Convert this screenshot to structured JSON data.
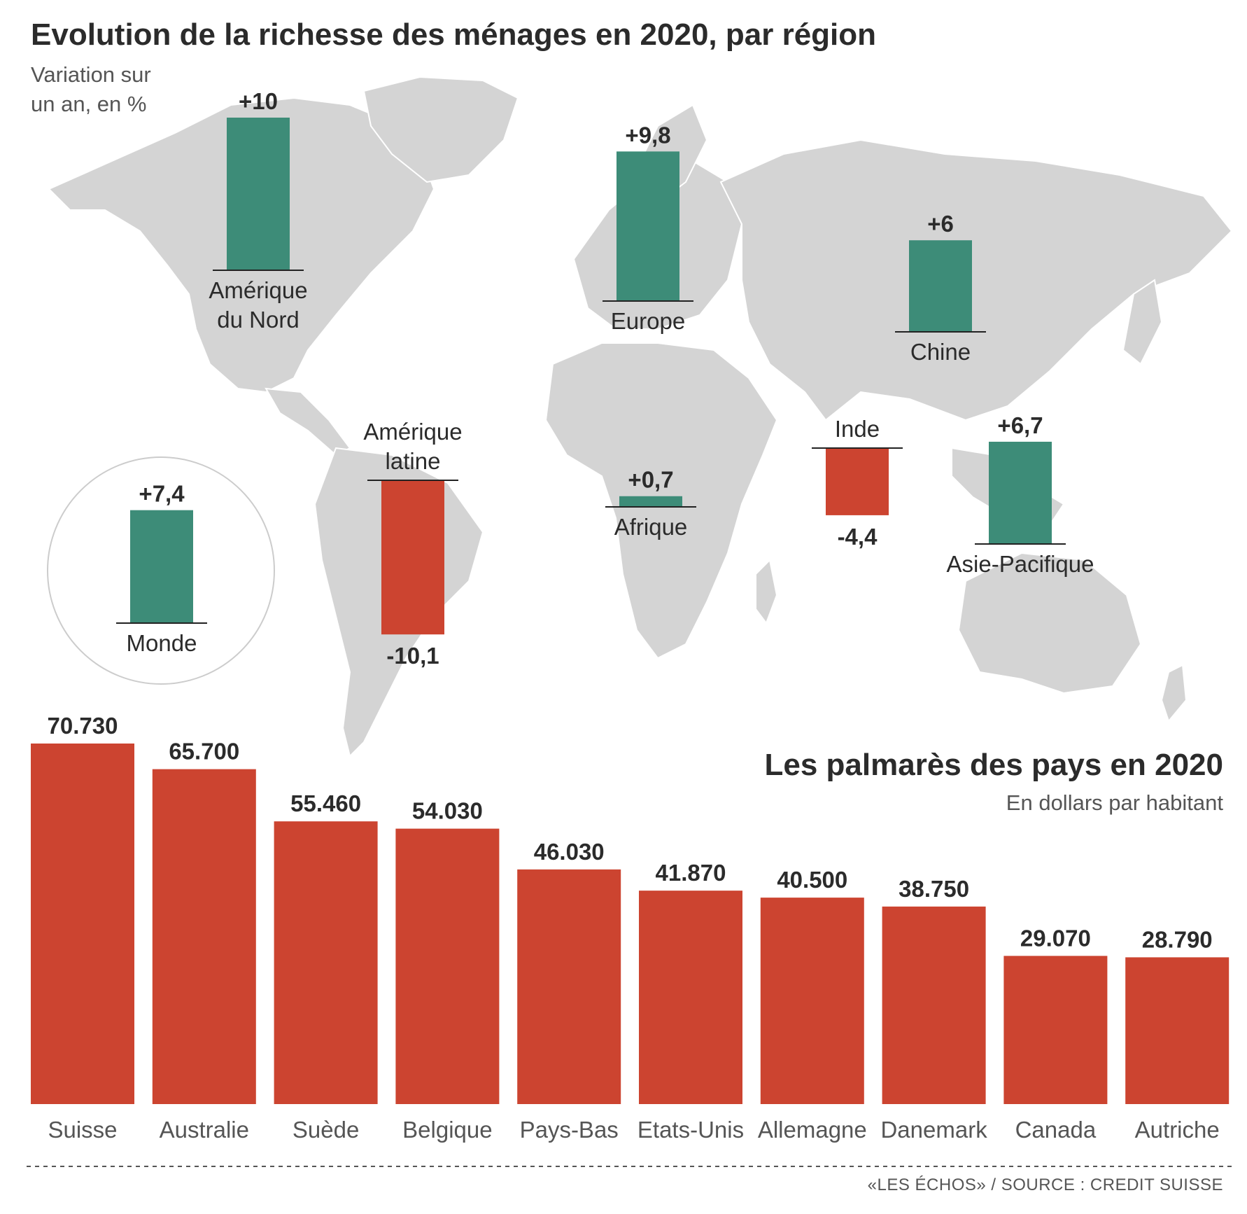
{
  "colors": {
    "positive": "#3d8c78",
    "negative": "#cc4430",
    "countries": "#cc4430",
    "land": "#d4d4d4"
  },
  "chart_data": [
    {
      "type": "bar",
      "title": "Evolution de la richesse des ménages en 2020, par région",
      "subtitle": "Variation sur un an, en %",
      "categories": [
        "Amérique du Nord",
        "Europe",
        "Chine",
        "Amérique latine",
        "Afrique",
        "Inde",
        "Asie-Pacifique",
        "Monde"
      ],
      "values": [
        10,
        9.8,
        6,
        -10.1,
        0.7,
        -4.4,
        6.7,
        7.4
      ],
      "value_labels": [
        "+10",
        "+9,8",
        "+6",
        "-10,1",
        "+0,7",
        "-4,4",
        "+6,7",
        "+7,4"
      ],
      "subtitle_lines": [
        "Variation sur",
        "un an, en %"
      ],
      "label_lines": [
        [
          "Amérique",
          "du Nord"
        ],
        [
          "Europe"
        ],
        [
          "Chine"
        ],
        [
          "Amérique",
          "latine"
        ],
        [
          "Afrique"
        ],
        [
          "Inde"
        ],
        [
          "Asie-Pacifique"
        ],
        [
          "Monde"
        ]
      ],
      "background": "world-map"
    },
    {
      "type": "bar",
      "title": "Les palmarès des pays en 2020",
      "subtitle": "En dollars par habitant",
      "categories": [
        "Suisse",
        "Australie",
        "Suède",
        "Belgique",
        "Pays-Bas",
        "Etats-Unis",
        "Allemagne",
        "Danemark",
        "Canada",
        "Autriche"
      ],
      "values": [
        70730,
        65700,
        55460,
        54030,
        46030,
        41870,
        40500,
        38750,
        29070,
        28790
      ],
      "value_labels": [
        "70.730",
        "65.700",
        "55.460",
        "54.030",
        "46.030",
        "41.870",
        "40.500",
        "38.750",
        "29.070",
        "28.790"
      ],
      "ylim": [
        0,
        70730
      ]
    }
  ],
  "source": "«LES ÉCHOS» / SOURCE : CREDIT SUISSE"
}
